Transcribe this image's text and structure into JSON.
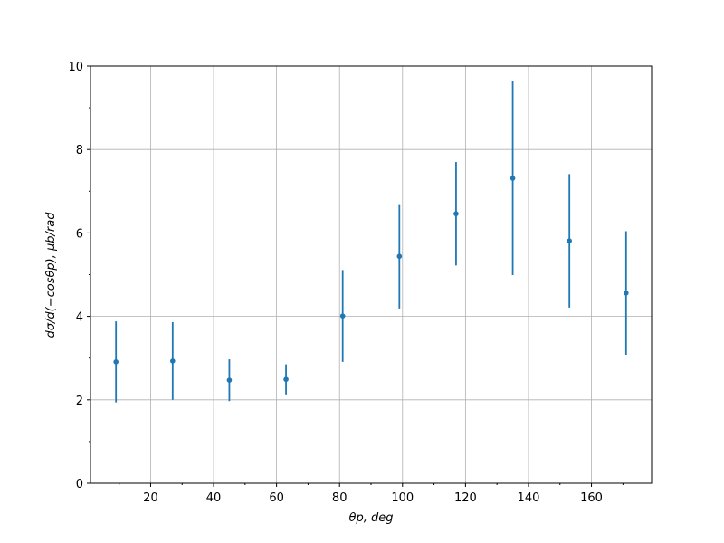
{
  "chart_data": {
    "type": "errorbar",
    "x_label": "θp, deg",
    "y_label": "dσ/d(−cosθp), μb/rad",
    "x": [
      9,
      27,
      45,
      63,
      81,
      99,
      117,
      135,
      153,
      171
    ],
    "values": [
      2.91,
      2.93,
      2.47,
      2.49,
      4.01,
      5.44,
      6.46,
      7.31,
      5.81,
      4.56
    ],
    "errors": [
      0.97,
      0.93,
      0.5,
      0.36,
      1.1,
      1.25,
      1.24,
      2.32,
      1.6,
      1.48
    ],
    "color": "#1f77b4",
    "xlim": [
      0.9,
      179.1
    ],
    "xticks": [
      20,
      40,
      60,
      80,
      100,
      120,
      140,
      160
    ],
    "xminorticks": [
      10,
      30,
      50,
      70,
      90,
      110,
      130,
      150,
      170
    ],
    "ylim": [
      0,
      10
    ],
    "yticks": [
      0,
      2,
      4,
      6,
      8,
      10
    ],
    "yminorticks": [
      1,
      3,
      5,
      7,
      9
    ],
    "grid": true
  }
}
